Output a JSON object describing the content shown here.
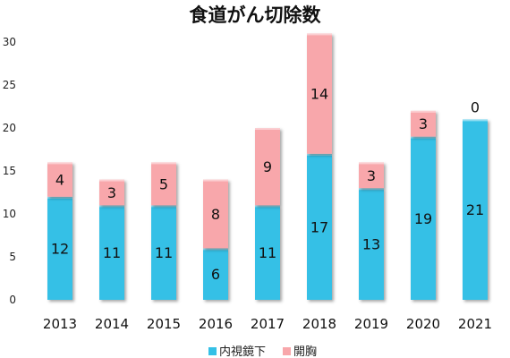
{
  "chart_data": {
    "type": "bar",
    "stacked": true,
    "title": "食道がん切除数",
    "categories": [
      "2013",
      "2014",
      "2015",
      "2016",
      "2017",
      "2018",
      "2019",
      "2020",
      "2021"
    ],
    "series": [
      {
        "name": "内視鏡下",
        "color": "#35c0e6",
        "values": [
          12,
          11,
          11,
          6,
          11,
          17,
          13,
          19,
          21
        ]
      },
      {
        "name": "開胸",
        "color": "#f8a7ab",
        "values": [
          4,
          3,
          5,
          8,
          9,
          14,
          3,
          3,
          0
        ]
      }
    ],
    "ylim": [
      0,
      30
    ],
    "yticks": [
      0,
      5,
      10,
      15,
      20,
      25,
      30
    ],
    "grid": false,
    "legend": "bottom",
    "xlabel": "",
    "ylabel": ""
  }
}
